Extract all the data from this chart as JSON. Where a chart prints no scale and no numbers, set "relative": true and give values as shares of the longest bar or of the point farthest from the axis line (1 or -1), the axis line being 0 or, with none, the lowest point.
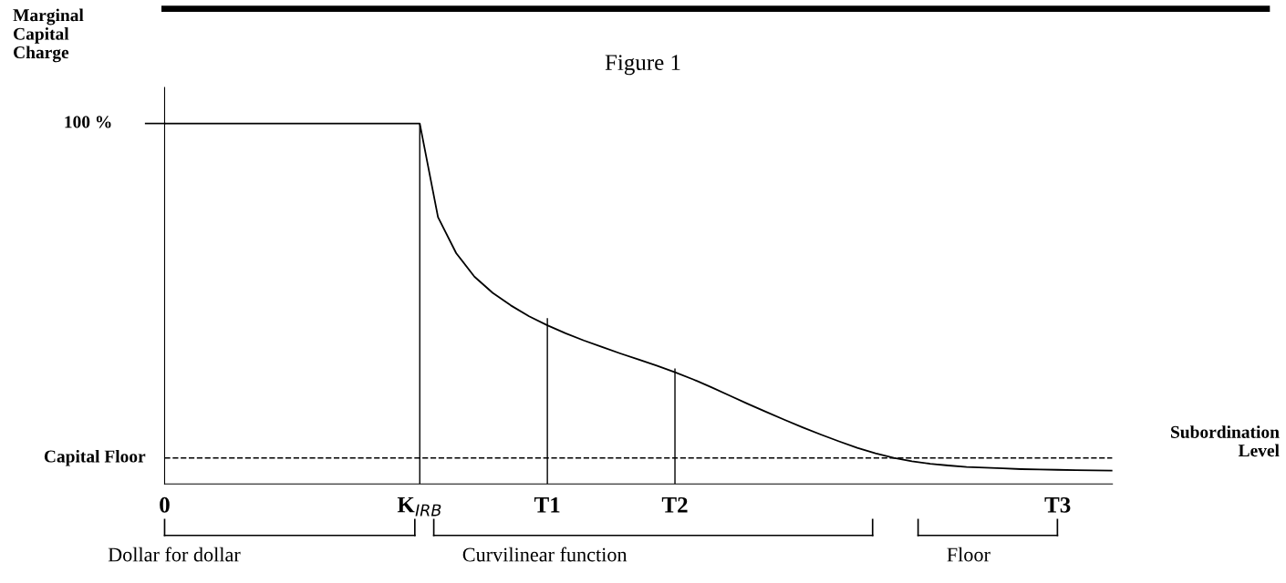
{
  "chart_data": {
    "type": "line",
    "relative": true,
    "title": "Figure 1",
    "xlabel": "Subordination\nLevel",
    "categories": [
      "0",
      null,
      null,
      null,
      null,
      null,
      null,
      null,
      null,
      null,
      null,
      null,
      null,
      null,
      "K$_{IRB}$",
      null,
      null,
      null,
      null,
      null,
      null,
      "T1",
      null,
      null,
      null,
      null,
      null,
      null,
      "T2",
      null,
      null,
      null,
      null,
      null,
      null,
      null,
      null,
      null,
      null,
      null,
      null,
      null,
      null,
      null,
      null,
      null,
      null,
      null,
      null,
      "T3",
      null,
      null,
      null
    ],
    "series": [
      {
        "color": "#000000",
        "values": [
          1,
          1,
          1,
          1,
          1,
          1,
          1,
          1,
          1,
          1,
          1,
          1,
          1,
          1,
          1,
          0.74,
          0.64,
          0.575,
          0.53,
          0.495,
          0.465,
          0.44,
          0.418,
          0.398,
          0.38,
          0.362,
          0.345,
          0.328,
          0.31,
          0.29,
          0.268,
          0.245,
          0.222,
          0.2,
          0.178,
          0.157,
          0.137,
          0.118,
          0.1,
          0.085,
          0.072,
          0.063,
          0.056,
          0.051,
          0.047,
          0.045,
          0.043,
          0.041,
          0.04,
          0.039,
          0.038,
          0.0375,
          0.037
        ]
      },
      {
        "type": "bar",
        "color": "#000000",
        "values": [
          null,
          null,
          null,
          null,
          null,
          null,
          null,
          null,
          null,
          null,
          null,
          null,
          null,
          null,
          1,
          null,
          null,
          null,
          null,
          null,
          null,
          0.46,
          null,
          null,
          null,
          null,
          null,
          null,
          0.32,
          null,
          null,
          null,
          null,
          null,
          null,
          null,
          null,
          null,
          null,
          null,
          null,
          null,
          null,
          null,
          null,
          null,
          null,
          null,
          null,
          null,
          null,
          null,
          null
        ]
      }
    ],
    "ref_lines": [
      {
        "axis": "y",
        "value": 0.072,
        "label": "Capital Floor",
        "line_style": "dashed",
        "color": "#000000"
      }
    ],
    "annotations": [
      "Marginal\nCapital\nCharge",
      "100 %",
      "Dollar for dollar",
      "Curvilinear function",
      "Floor"
    ],
    "line_style": "solid",
    "marker": "none"
  }
}
